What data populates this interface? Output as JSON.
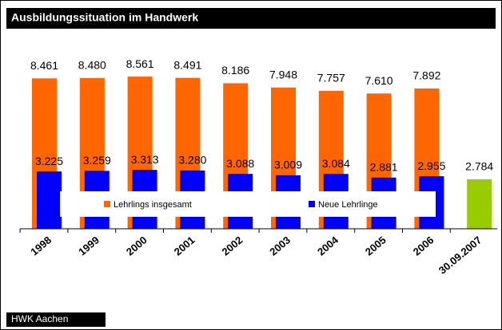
{
  "chart_data": {
    "type": "bar",
    "title": "Ausbildungssituation im Handwerk",
    "source": "HWK Aachen",
    "categories": [
      "1998",
      "1999",
      "2000",
      "2001",
      "2002",
      "2003",
      "2004",
      "2005",
      "2006",
      "30.09.2007"
    ],
    "series": [
      {
        "name": "Lehrlings insgesamt",
        "color": "#ff6600",
        "values": [
          8461,
          8480,
          8561,
          8491,
          8186,
          7948,
          7757,
          7610,
          7892,
          null
        ],
        "value_labels": [
          "8.461",
          "8.480",
          "8.561",
          "8.491",
          "8.186",
          "7.948",
          "7.757",
          "7.610",
          "7.892",
          null
        ]
      },
      {
        "name": "Neue Lehrlinge",
        "color": "#0000ff",
        "colors": [
          "#0000ff",
          "#0000ff",
          "#0000ff",
          "#0000ff",
          "#0000ff",
          "#0000ff",
          "#0000ff",
          "#0000ff",
          "#0000ff",
          "#99cc00"
        ],
        "values": [
          3225,
          3259,
          3313,
          3280,
          3088,
          3009,
          3084,
          2881,
          2955,
          2784
        ],
        "value_labels": [
          "3.225",
          "3.259",
          "3.313",
          "3.280",
          "3.088",
          "3.009",
          "3.084",
          "2.881",
          "2.955",
          "2.784"
        ]
      }
    ],
    "ylim": [
      0,
      10000
    ],
    "legend": "inside"
  }
}
